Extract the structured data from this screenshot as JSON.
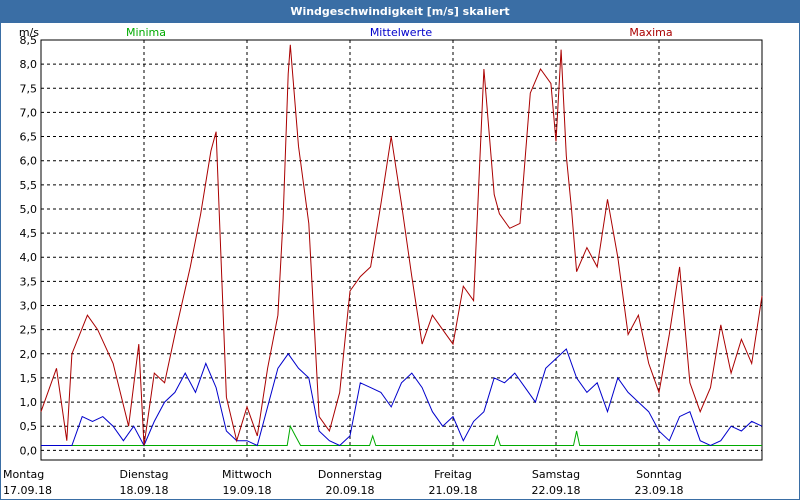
{
  "chart_data": {
    "type": "line",
    "title": "Windgeschwindigkeit [m/s] skaliert",
    "ylabel": "m/s",
    "ylim": [
      -0.2,
      8.5
    ],
    "yticks": [
      "0,0",
      "0,5",
      "1,0",
      "1,5",
      "2,0",
      "2,5",
      "3,0",
      "3,5",
      "4,0",
      "4,5",
      "5,0",
      "5,5",
      "6,0",
      "6,5",
      "7,0",
      "7,5",
      "8,0",
      "8,5"
    ],
    "xlim": [
      0,
      7
    ],
    "xticks": [
      {
        "day": "Montag",
        "date": "17.09.18"
      },
      {
        "day": "Dienstag",
        "date": "18.09.18"
      },
      {
        "day": "Mittwoch",
        "date": "19.09.18"
      },
      {
        "day": "Donnerstag",
        "date": "20.09.18"
      },
      {
        "day": "Freitag",
        "date": "21.09.18"
      },
      {
        "day": "Samstag",
        "date": "22.09.18"
      },
      {
        "day": "Sonntag",
        "date": "23.09.18"
      }
    ],
    "grid": true,
    "series": [
      {
        "name": "Minima",
        "color": "#00aa00",
        "x": [
          0,
          2.39,
          2.42,
          2.47,
          2.52,
          3.19,
          3.22,
          3.25,
          4.4,
          4.43,
          4.46,
          5.17,
          5.2,
          5.23,
          7
        ],
        "y": [
          0.1,
          0.1,
          0.5,
          0.3,
          0.1,
          0.1,
          0.3,
          0.1,
          0.1,
          0.3,
          0.1,
          0.1,
          0.4,
          0.1,
          0.1
        ]
      },
      {
        "name": "Mittelwerte",
        "color": "#0000cc",
        "x": [
          0,
          0.15,
          0.3,
          0.4,
          0.5,
          0.6,
          0.7,
          0.8,
          0.9,
          1.0,
          1.1,
          1.2,
          1.3,
          1.4,
          1.5,
          1.6,
          1.7,
          1.8,
          1.9,
          2.0,
          2.1,
          2.2,
          2.3,
          2.4,
          2.5,
          2.6,
          2.7,
          2.8,
          2.9,
          3.0,
          3.1,
          3.2,
          3.3,
          3.4,
          3.5,
          3.6,
          3.7,
          3.8,
          3.9,
          4.0,
          4.1,
          4.2,
          4.3,
          4.4,
          4.5,
          4.6,
          4.7,
          4.8,
          4.9,
          5.0,
          5.1,
          5.2,
          5.3,
          5.4,
          5.5,
          5.6,
          5.7,
          5.8,
          5.9,
          6.0,
          6.1,
          6.2,
          6.3,
          6.4,
          6.5,
          6.6,
          6.7,
          6.8,
          6.9,
          7.0
        ],
        "y": [
          0.1,
          0.1,
          0.1,
          0.7,
          0.6,
          0.7,
          0.5,
          0.2,
          0.5,
          0.1,
          0.6,
          1.0,
          1.2,
          1.6,
          1.2,
          1.8,
          1.3,
          0.4,
          0.2,
          0.2,
          0.1,
          0.9,
          1.7,
          2.0,
          1.7,
          1.5,
          0.4,
          0.2,
          0.1,
          0.3,
          1.4,
          1.3,
          1.2,
          0.9,
          1.4,
          1.6,
          1.3,
          0.8,
          0.5,
          0.7,
          0.2,
          0.6,
          0.8,
          1.5,
          1.4,
          1.6,
          1.3,
          1.0,
          1.7,
          1.9,
          2.1,
          1.5,
          1.2,
          1.4,
          0.8,
          1.5,
          1.2,
          1.0,
          0.8,
          0.4,
          0.2,
          0.7,
          0.8,
          0.2,
          0.1,
          0.2,
          0.5,
          0.4,
          0.6,
          0.5
        ]
      },
      {
        "name": "Maxima",
        "color": "#aa0000",
        "x": [
          0,
          0.15,
          0.25,
          0.3,
          0.45,
          0.55,
          0.7,
          0.85,
          0.95,
          1.0,
          1.1,
          1.2,
          1.3,
          1.45,
          1.55,
          1.65,
          1.7,
          1.8,
          1.9,
          2.0,
          2.1,
          2.2,
          2.3,
          2.35,
          2.4,
          2.42,
          2.5,
          2.6,
          2.7,
          2.8,
          2.9,
          3.0,
          3.1,
          3.2,
          3.3,
          3.4,
          3.5,
          3.6,
          3.7,
          3.8,
          3.9,
          4.0,
          4.1,
          4.2,
          4.3,
          4.4,
          4.45,
          4.55,
          4.65,
          4.75,
          4.85,
          4.95,
          5.0,
          5.05,
          5.1,
          5.15,
          5.2,
          5.3,
          5.4,
          5.5,
          5.6,
          5.7,
          5.8,
          5.9,
          6.0,
          6.1,
          6.2,
          6.3,
          6.4,
          6.5,
          6.6,
          6.7,
          6.8,
          6.9,
          7.0
        ],
        "y": [
          0.8,
          1.7,
          0.2,
          2.0,
          2.8,
          2.5,
          1.8,
          0.5,
          2.2,
          0.1,
          1.6,
          1.4,
          2.4,
          3.8,
          4.9,
          6.2,
          6.6,
          1.1,
          0.2,
          0.9,
          0.3,
          1.7,
          2.8,
          4.8,
          7.8,
          8.4,
          6.3,
          4.7,
          0.7,
          0.4,
          1.2,
          3.3,
          3.6,
          3.8,
          5.1,
          6.5,
          5.1,
          3.6,
          2.2,
          2.8,
          2.5,
          2.2,
          3.4,
          3.1,
          7.9,
          5.3,
          4.9,
          4.6,
          4.7,
          7.4,
          7.9,
          7.6,
          6.4,
          8.3,
          6.1,
          5.0,
          3.7,
          4.2,
          3.8,
          5.2,
          4.0,
          2.4,
          2.8,
          1.8,
          1.2,
          2.4,
          3.8,
          1.4,
          0.8,
          1.3,
          2.6,
          1.6,
          2.3,
          1.8,
          3.2
        ]
      }
    ]
  }
}
